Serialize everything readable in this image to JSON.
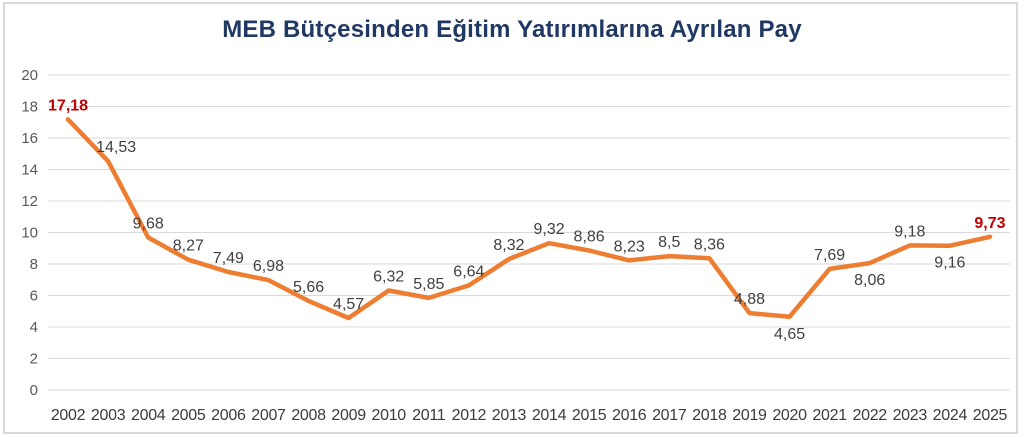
{
  "chart_data": {
    "type": "line",
    "title": "MEB Bütçesinden Eğitim Yatırımlarına Ayrılan Pay",
    "xlabel": "",
    "ylabel": "",
    "ylim": [
      0,
      20
    ],
    "ytick_step": 2,
    "grid": true,
    "legend": false,
    "categories": [
      "2002",
      "2003",
      "2004",
      "2005",
      "2006",
      "2007",
      "2008",
      "2009",
      "2010",
      "2011",
      "2012",
      "2013",
      "2014",
      "2015",
      "2016",
      "2017",
      "2018",
      "2019",
      "2020",
      "2021",
      "2022",
      "2023",
      "2024",
      "2025"
    ],
    "values": [
      17.18,
      14.53,
      9.68,
      8.27,
      7.49,
      6.98,
      5.66,
      4.57,
      6.32,
      5.85,
      6.64,
      8.32,
      9.32,
      8.86,
      8.23,
      8.5,
      8.36,
      4.88,
      4.65,
      7.69,
      8.06,
      9.18,
      9.16,
      9.73
    ],
    "data_labels": [
      "17,18",
      "14,53",
      "9,68",
      "8,27",
      "7,49",
      "6,98",
      "5,66",
      "4,57",
      "6,32",
      "5,85",
      "6,64",
      "8,32",
      "9,32",
      "8,86",
      "8,23",
      "8,5",
      "8,36",
      "4,88",
      "4,65",
      "7,69",
      "8,06",
      "9,18",
      "9,16",
      "9,73"
    ],
    "label_positions": [
      "above",
      "above",
      "above",
      "above",
      "above",
      "above",
      "above",
      "above",
      "above",
      "above",
      "above",
      "above",
      "above",
      "above",
      "above",
      "above",
      "above",
      "above",
      "below",
      "above",
      "below",
      "above",
      "below",
      "above"
    ],
    "highlight_indices": [
      0,
      23
    ],
    "colors": {
      "line": "#ED7D31",
      "title": "#1F3864",
      "data_label": "#404040",
      "highlight_label": "#C00000",
      "y_axis_label": "#595959",
      "x_axis_label": "#3B3B3B",
      "gridline": "#D9D9D9",
      "border": "#D9D9D9",
      "background": "#FFFFFF"
    }
  }
}
